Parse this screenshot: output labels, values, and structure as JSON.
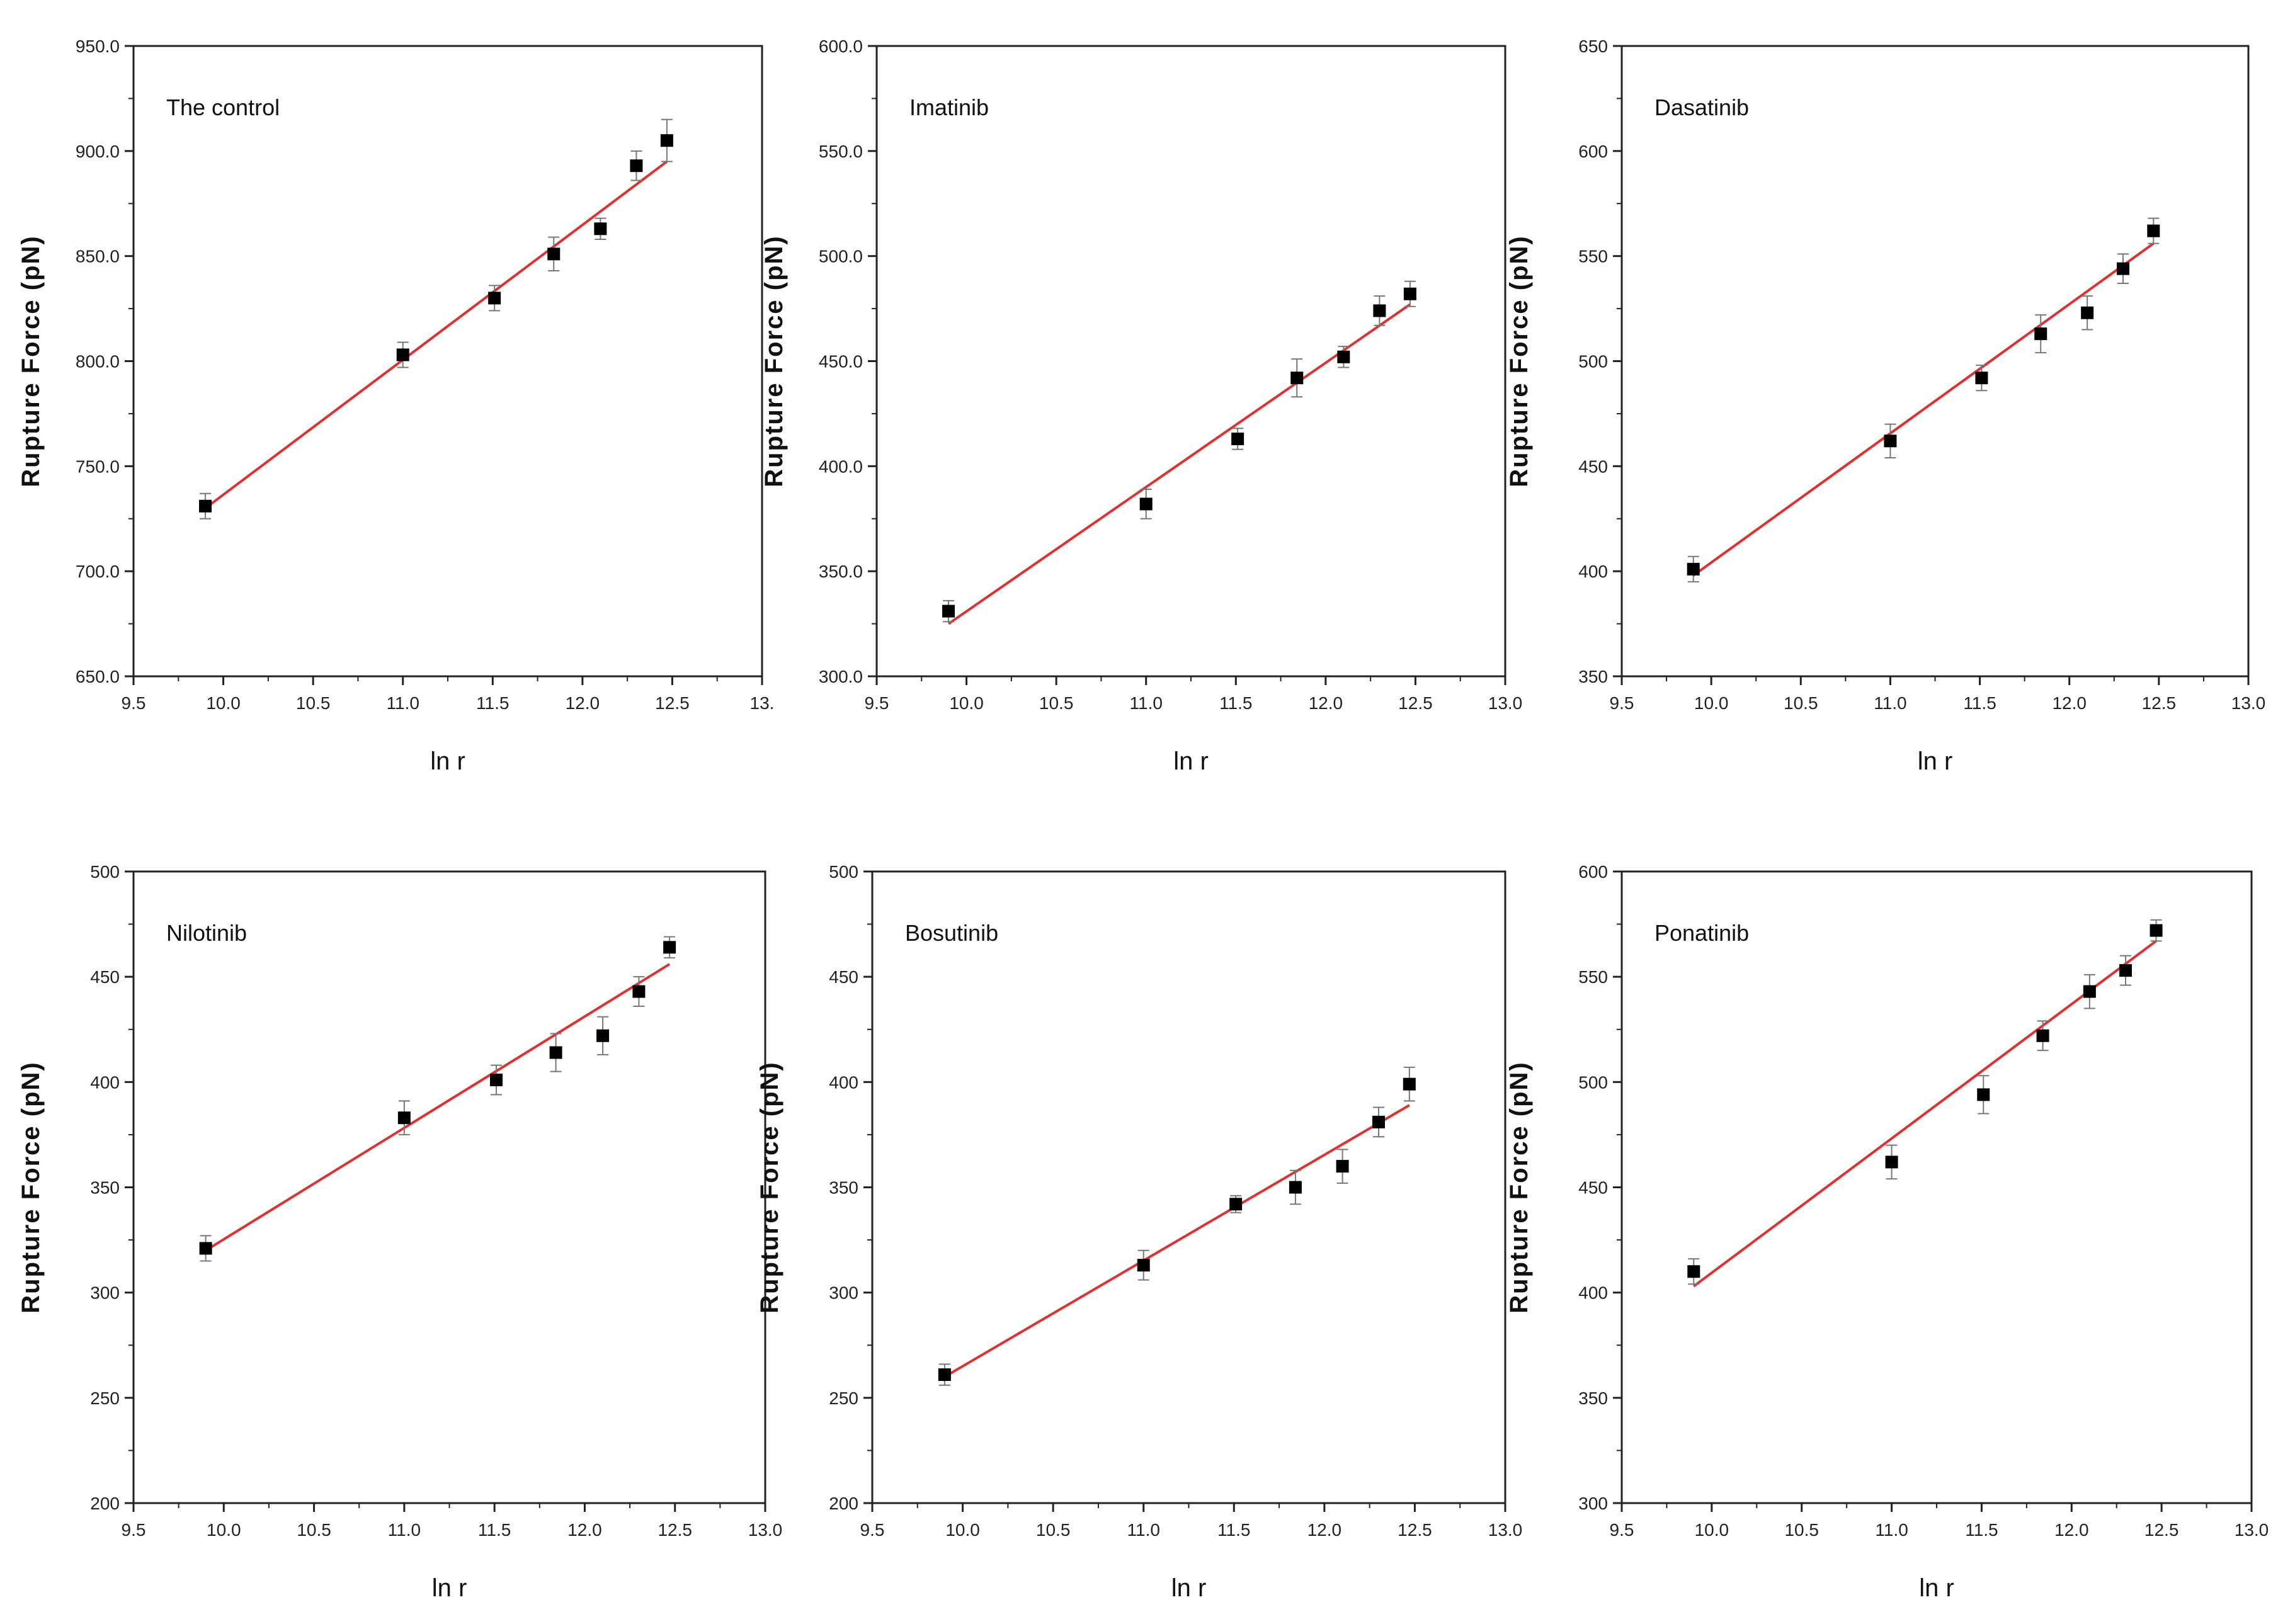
{
  "figure": {
    "x_ticks": [
      "9.5",
      "10.0",
      "10.5",
      "11.0",
      "11.5",
      "12.0",
      "12.5",
      "13.0"
    ],
    "x_ticks_first_panel": [
      "9.5",
      "10.0",
      "10.5",
      "11.0",
      "11.5",
      "12.0",
      "12.5",
      "13."
    ],
    "colors": {
      "fit_line": "#e03030",
      "marker": "#000000",
      "frame": "#222222",
      "errorbar": "#777777"
    }
  },
  "chart_data": [
    {
      "type": "scatter",
      "title": "The control",
      "xlabel": "ln r",
      "ylabel": "Rupture Force (pN)",
      "xlim": [
        9.5,
        13.0
      ],
      "ylim": [
        650,
        950
      ],
      "y_ticks": [
        "650.0",
        "700.0",
        "750.0",
        "800.0",
        "850.0",
        "900.0",
        "950.0"
      ],
      "x": [
        9.9,
        11.0,
        11.51,
        11.84,
        12.1,
        12.3,
        12.47
      ],
      "y": [
        731,
        803,
        830,
        851,
        863,
        893,
        905
      ],
      "yerr": [
        6,
        6,
        6,
        8,
        5,
        7,
        10
      ],
      "fit": {
        "x": [
          9.9,
          12.47
        ],
        "y": [
          730,
          895
        ]
      }
    },
    {
      "type": "scatter",
      "title": "Imatinib",
      "xlabel": "ln r",
      "ylabel": "Rupture Force (pN)",
      "xlim": [
        9.5,
        13.0
      ],
      "ylim": [
        300,
        600
      ],
      "y_ticks": [
        "300.0",
        "350.0",
        "400.0",
        "450.0",
        "500.0",
        "550.0",
        "600.0"
      ],
      "x": [
        9.9,
        11.0,
        11.51,
        11.84,
        12.1,
        12.3,
        12.47
      ],
      "y": [
        331,
        382,
        413,
        442,
        452,
        474,
        482
      ],
      "yerr": [
        5,
        7,
        5,
        9,
        5,
        7,
        6
      ],
      "fit": {
        "x": [
          9.9,
          12.47
        ],
        "y": [
          325,
          477
        ]
      }
    },
    {
      "type": "scatter",
      "title": "Dasatinib",
      "xlabel": "ln r",
      "ylabel": "Rupture Force (pN)",
      "xlim": [
        9.5,
        13.0
      ],
      "ylim": [
        350,
        650
      ],
      "y_ticks": [
        "350",
        "400",
        "450",
        "500",
        "550",
        "600",
        "650"
      ],
      "x": [
        9.9,
        11.0,
        11.51,
        11.84,
        12.1,
        12.3,
        12.47
      ],
      "y": [
        401,
        462,
        492,
        513,
        523,
        544,
        562
      ],
      "yerr": [
        6,
        8,
        6,
        9,
        8,
        7,
        6
      ],
      "fit": {
        "x": [
          9.9,
          12.47
        ],
        "y": [
          398,
          556
        ]
      }
    },
    {
      "type": "scatter",
      "title": "Nilotinib",
      "xlabel": "ln r",
      "ylabel": "Rupture Force (pN)",
      "xlim": [
        9.5,
        13.0
      ],
      "ylim": [
        200,
        500
      ],
      "y_ticks": [
        "200",
        "250",
        "300",
        "350",
        "400",
        "450",
        "500"
      ],
      "x": [
        9.9,
        11.0,
        11.51,
        11.84,
        12.1,
        12.3,
        12.47
      ],
      "y": [
        321,
        383,
        401,
        414,
        422,
        443,
        464
      ],
      "yerr": [
        6,
        8,
        7,
        9,
        9,
        7,
        5
      ],
      "fit": {
        "x": [
          9.9,
          12.47
        ],
        "y": [
          320,
          456
        ]
      }
    },
    {
      "type": "scatter",
      "title": "Bosutinib",
      "xlabel": "ln r",
      "ylabel": "Rupture Force (pN)",
      "xlim": [
        9.5,
        13.0
      ],
      "ylim": [
        200,
        500
      ],
      "y_ticks": [
        "200",
        "250",
        "300",
        "350",
        "400",
        "450",
        "500"
      ],
      "x": [
        9.9,
        11.0,
        11.51,
        11.84,
        12.1,
        12.3,
        12.47
      ],
      "y": [
        261,
        313,
        342,
        350,
        360,
        381,
        399
      ],
      "yerr": [
        5,
        7,
        4,
        8,
        8,
        7,
        8
      ],
      "fit": {
        "x": [
          9.9,
          12.47
        ],
        "y": [
          260,
          389
        ]
      }
    },
    {
      "type": "scatter",
      "title": "Ponatinib",
      "xlabel": "ln r",
      "ylabel": "Rupture Force (pN)",
      "xlim": [
        9.5,
        13.0
      ],
      "ylim": [
        300,
        600
      ],
      "y_ticks": [
        "300",
        "350",
        "400",
        "450",
        "500",
        "550",
        "600"
      ],
      "x": [
        9.9,
        11.0,
        11.51,
        11.84,
        12.1,
        12.3,
        12.47
      ],
      "y": [
        410,
        462,
        494,
        522,
        543,
        553,
        572
      ],
      "yerr": [
        6,
        8,
        9,
        7,
        8,
        7,
        5
      ],
      "fit": {
        "x": [
          9.9,
          12.47
        ],
        "y": [
          403,
          567
        ]
      }
    }
  ]
}
